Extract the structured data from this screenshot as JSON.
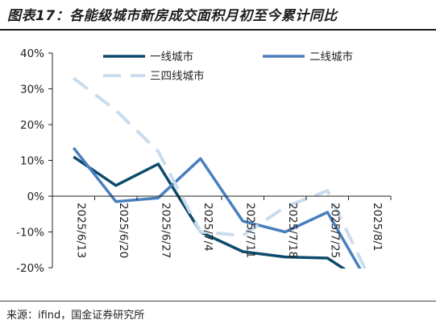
{
  "header": {
    "title": "图表17：各能级城市新房成交面积月初至今累计同比"
  },
  "footer": {
    "source": "来源：ifind，国金证券研究所"
  },
  "chart_data": {
    "type": "line",
    "title": "图表17：各能级城市新房成交面积月初至今累计同比",
    "xlabel": "",
    "ylabel": "",
    "ylim": [
      -20,
      40
    ],
    "ytick_step": 10,
    "y_unit": "%",
    "x": [
      "2025/6/13",
      "2025/6/20",
      "2025/6/27",
      "2025/7/4",
      "2025/7/11",
      "2025/7/18",
      "2025/7/25",
      "2025/8/1"
    ],
    "grid": false,
    "legend_position": "top",
    "series": [
      {
        "name": "一线城市",
        "color": "#0d4a6b",
        "dash": "solid",
        "values": [
          11,
          3,
          9,
          -10,
          -15.5,
          -17,
          -17.3,
          -25
        ]
      },
      {
        "name": "二线城市",
        "color": "#4a7fbe",
        "dash": "solid",
        "values": [
          13.5,
          -1.5,
          -0.5,
          10.5,
          -7,
          -10,
          -4.5,
          -25
        ]
      },
      {
        "name": "三四线城市",
        "color": "#c9dcee",
        "dash": "dashed",
        "values": [
          33,
          24,
          12.5,
          -10,
          -11,
          -3,
          1.5,
          -23
        ]
      }
    ]
  }
}
